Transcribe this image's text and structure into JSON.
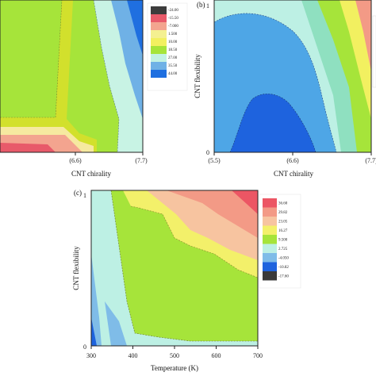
{
  "chart_data": [
    {
      "type": "contour",
      "panel_label": "",
      "xlabel": "CNT chirality",
      "ylabel": "",
      "x_ticks": [
        "(6.6)",
        "(7.7)"
      ],
      "y_ticks": [],
      "legend_levels": [
        "-24.00",
        "-15.50",
        "-7.000",
        "1.500",
        "10.00",
        "18.50",
        "27.00",
        "35.50",
        "44.00"
      ],
      "colors": {
        "deep_neg": "#3c3c3c",
        "neg": "#e85a6a",
        "neg_light": "#f3a48f",
        "mid": "#f2f060",
        "green": "#a6e43a",
        "green_light": "#b2e89a",
        "cyan": "#c2f2e3",
        "blue_light": "#6fb1e6",
        "blue": "#1f6fe0"
      }
    },
    {
      "type": "contour",
      "panel_label": "(b)",
      "xlabel": "CNT chirality",
      "ylabel": "CNT flexibility",
      "x_ticks": [
        "(5.5)",
        "(6.6)",
        "(7.7)"
      ],
      "y_ticks": [
        "0",
        "1"
      ],
      "legend_levels": [],
      "colors": {
        "blue_light": "#4ea6e6",
        "blue": "#1e63de",
        "cyan": "#bdf0e4",
        "green": "#a6e43a",
        "mint": "#8fe0c0"
      }
    },
    {
      "type": "contour",
      "panel_label": "(c)",
      "xlabel": "Temperature (K)",
      "ylabel": "CNT flexibility",
      "x_ticks": [
        "300",
        "400",
        "500",
        "600",
        "700"
      ],
      "y_ticks": [
        "0",
        "1"
      ],
      "legend_levels": [
        "36.60",
        "29.82",
        "23.05",
        "16.27",
        "9.500",
        "2.725",
        "-4.050",
        "-10.82",
        "-17.60"
      ],
      "legend_colors": [
        "#ec5664",
        "#f39a86",
        "#f7c4a0",
        "#f3f06a",
        "#a6e43a",
        "#bdf0e4",
        "#7fbce8",
        "#1e63de",
        "#3a3a3a"
      ]
    }
  ]
}
